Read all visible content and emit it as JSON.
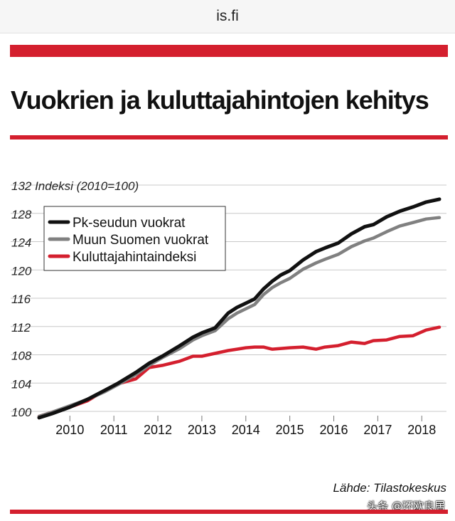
{
  "header": {
    "site": "is.fi"
  },
  "article": {
    "title": "Vuokrien ja kuluttajahintojen kehitys",
    "source": "Lähde: Tilastokeskus",
    "watermark": "头条 @环欧良居"
  },
  "colors": {
    "accent": "#d41f2e",
    "pk": "#111111",
    "muu": "#808080",
    "kuluttaja": "#d41f2e",
    "grid": "#c8c8c8"
  },
  "chart_data": {
    "type": "line",
    "ylabel": "Indeksi (2010=100)",
    "ylim": [
      100,
      132
    ],
    "yticks": [
      100,
      104,
      108,
      112,
      116,
      120,
      124,
      128,
      132
    ],
    "xlim": [
      2009.3,
      2018.4
    ],
    "xticks": [
      2010,
      2011,
      2012,
      2013,
      2014,
      2015,
      2016,
      2017,
      2018
    ],
    "grid": true,
    "legend_position": "top-left",
    "series": [
      {
        "name": "Pk-seudun vuokrat",
        "color": "#111111",
        "x": [
          2009.3,
          2009.6,
          2010.0,
          2010.4,
          2010.8,
          2011.1,
          2011.5,
          2011.8,
          2012.1,
          2012.5,
          2012.8,
          2013.0,
          2013.3,
          2013.6,
          2013.8,
          2014.0,
          2014.2,
          2014.4,
          2014.6,
          2014.8,
          2015.0,
          2015.3,
          2015.6,
          2015.8,
          2016.1,
          2016.4,
          2016.7,
          2016.9,
          2017.2,
          2017.5,
          2017.8,
          2018.1,
          2018.4
        ],
        "values": [
          99.1,
          99.7,
          100.6,
          101.7,
          103.0,
          104.0,
          105.5,
          106.8,
          107.8,
          109.3,
          110.5,
          111.1,
          111.8,
          113.9,
          114.7,
          115.3,
          115.9,
          117.3,
          118.4,
          119.3,
          119.9,
          121.4,
          122.6,
          123.1,
          123.8,
          125.1,
          126.1,
          126.4,
          127.5,
          128.3,
          128.9,
          129.6,
          130.0
        ]
      },
      {
        "name": "Muun Suomen vuokrat",
        "color": "#808080",
        "x": [
          2009.3,
          2009.6,
          2010.0,
          2010.4,
          2010.8,
          2011.1,
          2011.5,
          2011.8,
          2012.1,
          2012.5,
          2012.8,
          2013.0,
          2013.3,
          2013.6,
          2013.8,
          2014.0,
          2014.2,
          2014.4,
          2014.6,
          2014.8,
          2015.0,
          2015.3,
          2015.6,
          2015.8,
          2016.1,
          2016.4,
          2016.7,
          2016.9,
          2017.2,
          2017.5,
          2017.8,
          2018.1,
          2018.4
        ],
        "values": [
          99.3,
          99.9,
          100.8,
          101.7,
          102.8,
          103.8,
          105.2,
          106.5,
          107.6,
          108.9,
          110.1,
          110.7,
          111.4,
          113.1,
          113.9,
          114.5,
          115.1,
          116.5,
          117.5,
          118.2,
          118.8,
          120.1,
          121.0,
          121.5,
          122.2,
          123.3,
          124.1,
          124.5,
          125.4,
          126.2,
          126.7,
          127.2,
          127.4
        ]
      },
      {
        "name": "Kuluttajahintaindeksi",
        "color": "#d41f2e",
        "x": [
          2009.3,
          2009.6,
          2010.0,
          2010.4,
          2010.8,
          2011.1,
          2011.5,
          2011.8,
          2012.1,
          2012.5,
          2012.8,
          2013.0,
          2013.3,
          2013.6,
          2013.8,
          2014.0,
          2014.2,
          2014.4,
          2014.6,
          2014.8,
          2015.0,
          2015.3,
          2015.6,
          2015.8,
          2016.1,
          2016.4,
          2016.7,
          2016.9,
          2017.2,
          2017.5,
          2017.8,
          2018.1,
          2018.4
        ],
        "values": [
          99.3,
          99.9,
          100.6,
          101.5,
          103.0,
          103.9,
          104.6,
          106.2,
          106.5,
          107.1,
          107.8,
          107.8,
          108.2,
          108.6,
          108.8,
          109.0,
          109.1,
          109.1,
          108.8,
          108.9,
          109.0,
          109.1,
          108.8,
          109.1,
          109.3,
          109.8,
          109.6,
          110.0,
          110.1,
          110.6,
          110.7,
          111.5,
          111.9
        ]
      }
    ]
  }
}
